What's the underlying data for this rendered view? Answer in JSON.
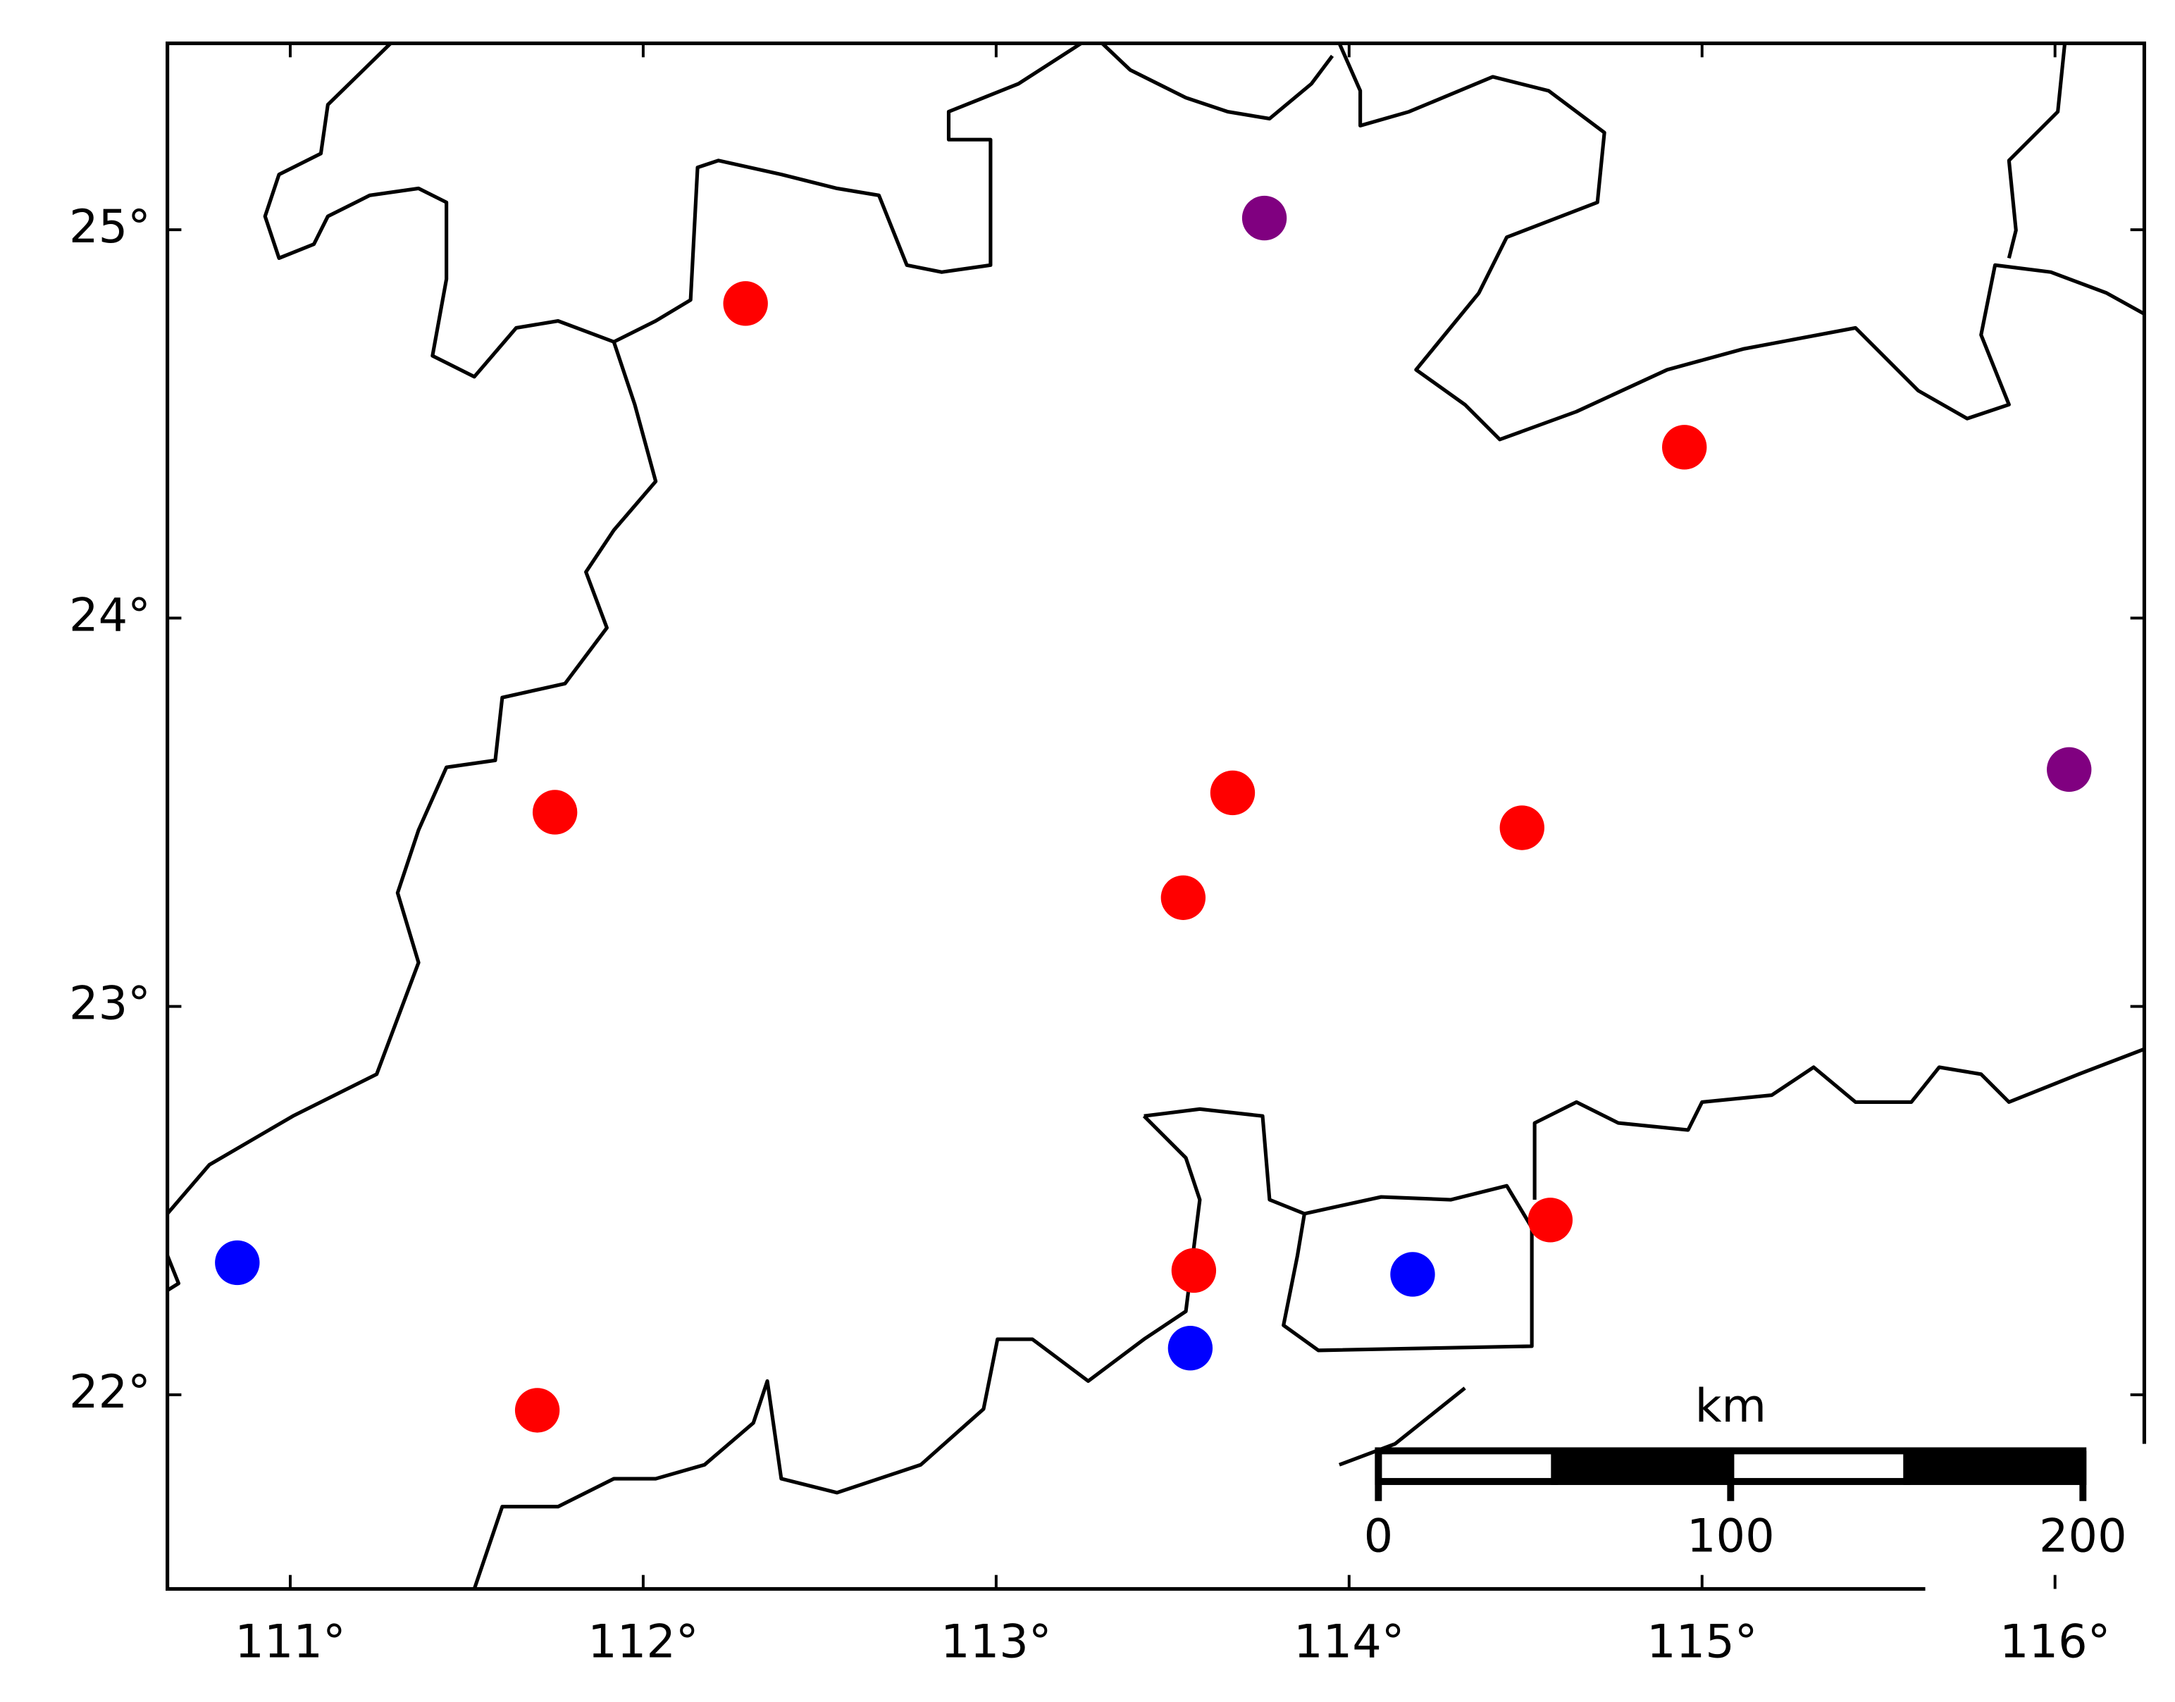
{
  "chart_data": {
    "type": "scatter",
    "xlim": [
      110.652,
      116.253
    ],
    "ylim": [
      21.5,
      25.48
    ],
    "xticks": [
      {
        "value": 111,
        "label": "111°"
      },
      {
        "value": 112,
        "label": "112°"
      },
      {
        "value": 113,
        "label": "113°"
      },
      {
        "value": 114,
        "label": "114°"
      },
      {
        "value": 115,
        "label": "115°"
      },
      {
        "value": 116,
        "label": "116°"
      }
    ],
    "yticks": [
      {
        "value": 22,
        "label": "22°"
      },
      {
        "value": 23,
        "label": "23°"
      },
      {
        "value": 24,
        "label": "24°"
      },
      {
        "value": 25,
        "label": "25°"
      }
    ],
    "series": [
      {
        "color": "#ff0000",
        "x": [
          112.29,
          114.95,
          111.75,
          113.67,
          113.53,
          114.49,
          114.57,
          113.56,
          111.7
        ],
        "values": [
          24.81,
          24.44,
          23.5,
          23.55,
          23.28,
          23.46,
          22.45,
          22.32,
          21.96
        ]
      },
      {
        "color": "#0000ff",
        "x": [
          110.85,
          114.18,
          113.55
        ],
        "values": [
          22.34,
          22.31,
          22.12
        ]
      },
      {
        "color": "#800080",
        "x": [
          113.76,
          116.04
        ],
        "values": [
          25.03,
          23.61
        ]
      }
    ],
    "scale_bar": {
      "label": "km",
      "ticks": [
        0,
        100,
        200
      ]
    }
  }
}
